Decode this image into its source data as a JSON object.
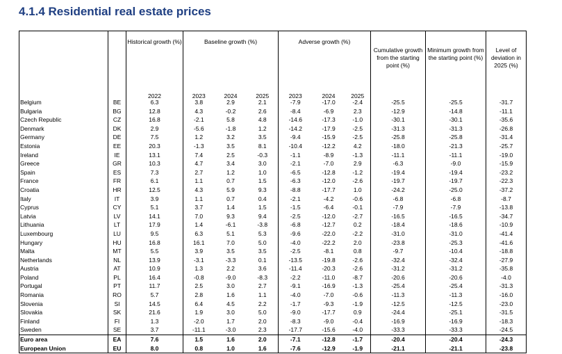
{
  "title": "4.1.4 Residential real estate prices",
  "headers": {
    "historical": "Historical growth (%)",
    "baseline": "Baseline growth (%)",
    "adverse": "Adverse growth (%)",
    "cumulative": "Cumulative growth from the starting point (%)",
    "minimum": "Minimum growth from the starting point (%)",
    "deviation": "Level of deviation in 2025 (%)",
    "years": [
      "2022",
      "2023",
      "2024",
      "2025",
      "2023",
      "2024",
      "2025"
    ]
  },
  "rows": [
    [
      "Belgium",
      "BE",
      "6.3",
      "3.8",
      "2.9",
      "2.1",
      "-7.9",
      "-17.0",
      "-2.4",
      "-25.5",
      "-25.5",
      "-31.7"
    ],
    [
      "Bulgaria",
      "BG",
      "12.8",
      "4.3",
      "-0.2",
      "2.6",
      "-8.4",
      "-6.9",
      "2.3",
      "-12.9",
      "-14.8",
      "-11.1"
    ],
    [
      "Czech Republic",
      "CZ",
      "16.8",
      "-2.1",
      "5.8",
      "4.8",
      "-14.6",
      "-17.3",
      "-1.0",
      "-30.1",
      "-30.1",
      "-35.6"
    ],
    [
      "Denmark",
      "DK",
      "2.9",
      "-5.6",
      "-1.8",
      "1.2",
      "-14.2",
      "-17.9",
      "-2.5",
      "-31.3",
      "-31.3",
      "-26.8"
    ],
    [
      "Germany",
      "DE",
      "7.5",
      "1.2",
      "3.2",
      "3.5",
      "-9.4",
      "-15.9",
      "-2.5",
      "-25.8",
      "-25.8",
      "-31.4"
    ],
    [
      "Estonia",
      "EE",
      "20.3",
      "-1.3",
      "3.5",
      "8.1",
      "-10.4",
      "-12.2",
      "4.2",
      "-18.0",
      "-21.3",
      "-25.7"
    ],
    [
      "Ireland",
      "IE",
      "13.1",
      "7.4",
      "2.5",
      "-0.3",
      "-1.1",
      "-8.9",
      "-1.3",
      "-11.1",
      "-11.1",
      "-19.0"
    ],
    [
      "Greece",
      "GR",
      "10.3",
      "4.7",
      "3.4",
      "3.0",
      "-2.1",
      "-7.0",
      "2.9",
      "-6.3",
      "-9.0",
      "-15.9"
    ],
    [
      "Spain",
      "ES",
      "7.3",
      "2.7",
      "1.2",
      "1.0",
      "-6.5",
      "-12.8",
      "-1.2",
      "-19.4",
      "-19.4",
      "-23.2"
    ],
    [
      "France",
      "FR",
      "6.1",
      "1.1",
      "0.7",
      "1.5",
      "-6.3",
      "-12.0",
      "-2.6",
      "-19.7",
      "-19.7",
      "-22.3"
    ],
    [
      "Croatia",
      "HR",
      "12.5",
      "4.3",
      "5.9",
      "9.3",
      "-8.8",
      "-17.7",
      "1.0",
      "-24.2",
      "-25.0",
      "-37.2"
    ],
    [
      "Italy",
      "IT",
      "3.9",
      "1.1",
      "0.7",
      "0.4",
      "-2.1",
      "-4.2",
      "-0.6",
      "-6.8",
      "-6.8",
      "-8.7"
    ],
    [
      "Cyprus",
      "CY",
      "5.1",
      "3.7",
      "1.4",
      "1.5",
      "-1.5",
      "-6.4",
      "-0.1",
      "-7.9",
      "-7.9",
      "-13.8"
    ],
    [
      "Latvia",
      "LV",
      "14.1",
      "7.0",
      "9.3",
      "9.4",
      "-2.5",
      "-12.0",
      "-2.7",
      "-16.5",
      "-16.5",
      "-34.7"
    ],
    [
      "Lithuania",
      "LT",
      "17.9",
      "1.4",
      "-6.1",
      "-3.8",
      "-6.8",
      "-12.7",
      "0.2",
      "-18.4",
      "-18.6",
      "-10.9"
    ],
    [
      "Luxembourg",
      "LU",
      "9.5",
      "6.3",
      "5.1",
      "5.3",
      "-9.6",
      "-22.0",
      "-2.2",
      "-31.0",
      "-31.0",
      "-41.4"
    ],
    [
      "Hungary",
      "HU",
      "16.8",
      "16.1",
      "7.0",
      "5.0",
      "-4.0",
      "-22.2",
      "2.0",
      "-23.8",
      "-25.3",
      "-41.6"
    ],
    [
      "Malta",
      "MT",
      "5.5",
      "3.9",
      "3.5",
      "3.5",
      "-2.5",
      "-8.1",
      "0.8",
      "-9.7",
      "-10.4",
      "-18.8"
    ],
    [
      "Netherlands",
      "NL",
      "13.9",
      "-3.1",
      "-3.3",
      "0.1",
      "-13.5",
      "-19.8",
      "-2.6",
      "-32.4",
      "-32.4",
      "-27.9"
    ],
    [
      "Austria",
      "AT",
      "10.9",
      "1.3",
      "2.2",
      "3.6",
      "-11.4",
      "-20.3",
      "-2.6",
      "-31.2",
      "-31.2",
      "-35.8"
    ],
    [
      "Poland",
      "PL",
      "16.4",
      "-0.8",
      "-9.0",
      "-8.3",
      "-2.2",
      "-11.0",
      "-8.7",
      "-20.6",
      "-20.6",
      "-4.0"
    ],
    [
      "Portugal",
      "PT",
      "11.7",
      "2.5",
      "3.0",
      "2.7",
      "-9.1",
      "-16.9",
      "-1.3",
      "-25.4",
      "-25.4",
      "-31.3"
    ],
    [
      "Romania",
      "RO",
      "5.7",
      "2.8",
      "1.6",
      "1.1",
      "-4.0",
      "-7.0",
      "-0.6",
      "-11.3",
      "-11.3",
      "-16.0"
    ],
    [
      "Slovenia",
      "SI",
      "14.5",
      "6.4",
      "4.5",
      "2.2",
      "-1.7",
      "-9.3",
      "-1.9",
      "-12.5",
      "-12.5",
      "-23.0"
    ],
    [
      "Slovakia",
      "SK",
      "21.6",
      "1.9",
      "3.0",
      "5.0",
      "-9.0",
      "-17.7",
      "0.9",
      "-24.4",
      "-25.1",
      "-31.5"
    ],
    [
      "Finland",
      "FI",
      "1.3",
      "-2.0",
      "1.7",
      "2.0",
      "-8.3",
      "-9.0",
      "-0.4",
      "-16.9",
      "-16.9",
      "-18.3"
    ],
    [
      "Sweden",
      "SE",
      "3.7",
      "-11.1",
      "-3.0",
      "2.3",
      "-17.7",
      "-15.6",
      "-4.0",
      "-33.3",
      "-33.3",
      "-24.5"
    ]
  ],
  "aggregates": [
    [
      "Euro area",
      "EA",
      "7.6",
      "1.5",
      "1.6",
      "2.0",
      "-7.1",
      "-12.8",
      "-1.7",
      "-20.4",
      "-20.4",
      "-24.3"
    ],
    [
      "European Union",
      "EU",
      "8.0",
      "0.8",
      "1.0",
      "1.6",
      "-7.6",
      "-12.9",
      "-1.9",
      "-21.1",
      "-21.1",
      "-23.8"
    ]
  ]
}
